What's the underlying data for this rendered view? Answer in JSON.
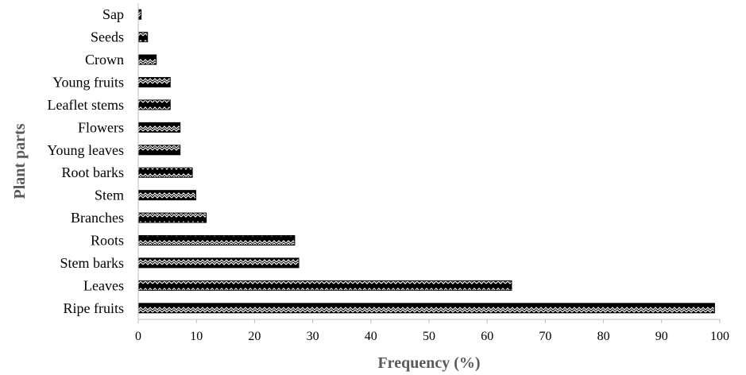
{
  "chart_data": {
    "type": "bar",
    "orientation": "horizontal",
    "categories": [
      "Sap",
      "Seeds",
      "Crown",
      "Young fruits",
      "Leaflet stems",
      "Flowers",
      "Young leaves",
      "Root barks",
      "Stem",
      "Branches",
      "Roots",
      "Stem barks",
      "Leaves",
      "Ripe fruits"
    ],
    "values": [
      0.5,
      1.6,
      3.1,
      5.5,
      5.5,
      7.2,
      7.2,
      9.3,
      9.9,
      11.7,
      26.9,
      27.6,
      64.2,
      99.1
    ],
    "xlabel": "Frequency (%)",
    "ylabel": "Plant parts",
    "xlim": [
      0,
      100
    ],
    "xticks": [
      "0",
      "10",
      "20",
      "30",
      "40",
      "50",
      "60",
      "70",
      "80",
      "90",
      "100"
    ],
    "grid": false,
    "legend": "none",
    "bar_color": "#000000",
    "pattern_color": "#ffffff"
  }
}
